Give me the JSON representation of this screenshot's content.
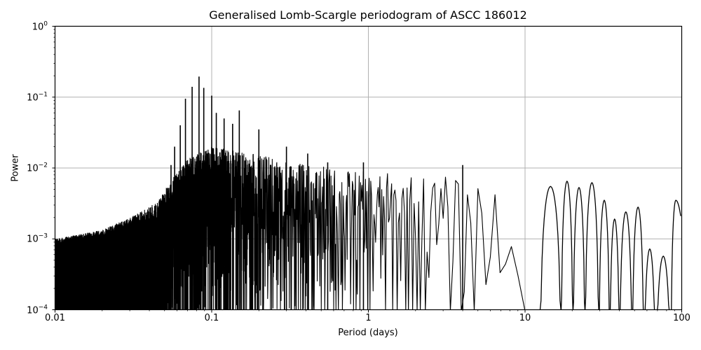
{
  "chart_data": {
    "type": "line",
    "title": "Generalised Lomb-Scargle periodogram of ASCC 186012",
    "xlabel": "Period (days)",
    "ylabel": "Power",
    "xscale": "log",
    "yscale": "log",
    "xlim": [
      0.01,
      100
    ],
    "ylim": [
      0.0001,
      1
    ],
    "grid": true,
    "legend": null,
    "line_color": "#000000",
    "grid_color": "#b0b0b0",
    "x_ticks": [
      {
        "value": 0.01,
        "label": "0.01"
      },
      {
        "value": 0.1,
        "label": "0.1"
      },
      {
        "value": 1,
        "label": "1"
      },
      {
        "value": 10,
        "label": "10"
      },
      {
        "value": 100,
        "label": "100"
      }
    ],
    "y_ticks": [
      {
        "value": 1,
        "base": "10",
        "exp": "0"
      },
      {
        "value": 0.1,
        "base": "10",
        "exp": "−1"
      },
      {
        "value": 0.01,
        "base": "10",
        "exp": "−2"
      },
      {
        "value": 0.001,
        "base": "10",
        "exp": "−3"
      },
      {
        "value": 0.0001,
        "base": "10",
        "exp": "−4"
      }
    ],
    "notable_peaks": [
      {
        "period": 0.083,
        "power": 0.195
      },
      {
        "period": 0.075,
        "power": 0.14
      },
      {
        "period": 0.089,
        "power": 0.135
      },
      {
        "period": 0.1,
        "power": 0.105
      },
      {
        "period": 0.068,
        "power": 0.095
      },
      {
        "period": 0.15,
        "power": 0.065
      },
      {
        "period": 0.12,
        "power": 0.05
      },
      {
        "period": 0.136,
        "power": 0.042
      },
      {
        "period": 0.2,
        "power": 0.035
      },
      {
        "period": 0.063,
        "power": 0.04
      },
      {
        "period": 0.107,
        "power": 0.06
      },
      {
        "period": 0.058,
        "power": 0.02
      },
      {
        "period": 0.055,
        "power": 0.011
      },
      {
        "period": 0.3,
        "power": 0.02
      },
      {
        "period": 0.41,
        "power": 0.016
      },
      {
        "period": 0.55,
        "power": 0.012
      },
      {
        "period": 0.93,
        "power": 0.012
      },
      {
        "period": 4.0,
        "power": 0.011
      },
      {
        "period": 18.6,
        "power": 0.0065
      },
      {
        "period": 26.5,
        "power": 0.0062
      },
      {
        "period": 15.5,
        "power": 0.0055
      },
      {
        "period": 22.0,
        "power": 0.0053
      },
      {
        "period": 33.0,
        "power": 0.0035
      },
      {
        "period": 36.5,
        "power": 0.0019
      },
      {
        "period": 44.0,
        "power": 0.0024
      },
      {
        "period": 53.0,
        "power": 0.0028
      },
      {
        "period": 62.0,
        "power": 0.00072
      },
      {
        "period": 75.0,
        "power": 0.00057
      },
      {
        "period": 97.0,
        "power": 0.0035
      }
    ],
    "envelope": [
      {
        "period": 0.01,
        "power": 0.00045
      },
      {
        "period": 0.02,
        "power": 0.0006
      },
      {
        "period": 0.03,
        "power": 0.0009
      },
      {
        "period": 0.045,
        "power": 0.0015
      },
      {
        "period": 0.055,
        "power": 0.003
      },
      {
        "period": 0.07,
        "power": 0.006
      },
      {
        "period": 0.1,
        "power": 0.009
      },
      {
        "period": 0.2,
        "power": 0.007
      },
      {
        "period": 0.4,
        "power": 0.005
      },
      {
        "period": 1.0,
        "power": 0.004
      },
      {
        "period": 3.0,
        "power": 0.0035
      },
      {
        "period": 10.0,
        "power": 0.0025
      }
    ]
  }
}
